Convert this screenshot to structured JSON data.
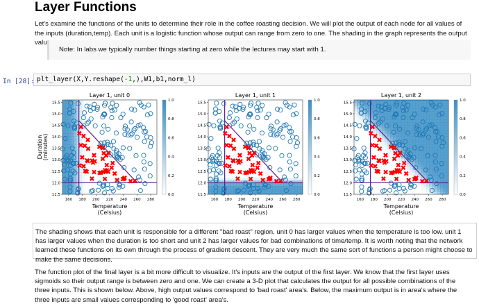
{
  "heading": "Layer Functions",
  "intro": "Let's examine the functions of the units to determine their role in the coffee roasting decision. We will plot the output of each node for all values of the inputs (duration,temp). Each unit is a logistic function whose output can range from zero to one. The shading in the graph represents the output value.",
  "note": "Note: In labs we typically number things starting at zero while the lectures may start with 1.",
  "cell": {
    "prompt": "In [28]:",
    "code_a": "plt_layer(X,Y.reshape(",
    "code_num": "-1",
    "code_b": ",),W1,b1,norm_l)"
  },
  "plots": {
    "xlabel_1": "Temperature",
    "xlabel_2": "(Celsius)",
    "ylabel_1": "Duration",
    "ylabel_2": "(minutes)",
    "titles": [
      "Layer 1, unit 0",
      "Layer 1, unit 1",
      "Layer 1, unit 2"
    ],
    "xticks": [
      "160",
      "180",
      "200",
      "220",
      "240",
      "260",
      "280"
    ],
    "yticks": [
      "15.5",
      "15.0",
      "14.5",
      "14.0",
      "13.5",
      "13.0",
      "12.5",
      "12.0",
      "11.5"
    ],
    "cbar_ticks": [
      "1.0",
      "0.8",
      "0.6",
      "0.4",
      "0.2",
      "0.0"
    ],
    "colors": {
      "good": "#ff0000",
      "bad": "#1f77b4",
      "line": "#5a1a8c",
      "shade": "#3a8fc6"
    }
  },
  "explanation": "The shading shows that each unit is responsible for a different \"bad roast\" region. unit 0 has larger values when the temperature is too low. unit 1 has larger values when the duration is too short and unit 2 has larger values for bad combinations of time/temp. It is worth noting that the network learned these functions on its own through the process of gradient descent. They are very much the same sort of functions a person might choose to make the same decisions.",
  "final_paragraph": "The function plot of the final layer is a bit more difficult to visualize. It's inputs are the output of the first layer. We know that the first layer uses sigmoids so their output range is between zero and one. We can create a 3-D plot that calculates the output for all possible combinations of the three inputs. This is shown below. Above, high output values correspond to 'bad roast' area's. Below, the maximum output is in area's where the three inputs are small values corresponding to 'good roast' area's."
}
